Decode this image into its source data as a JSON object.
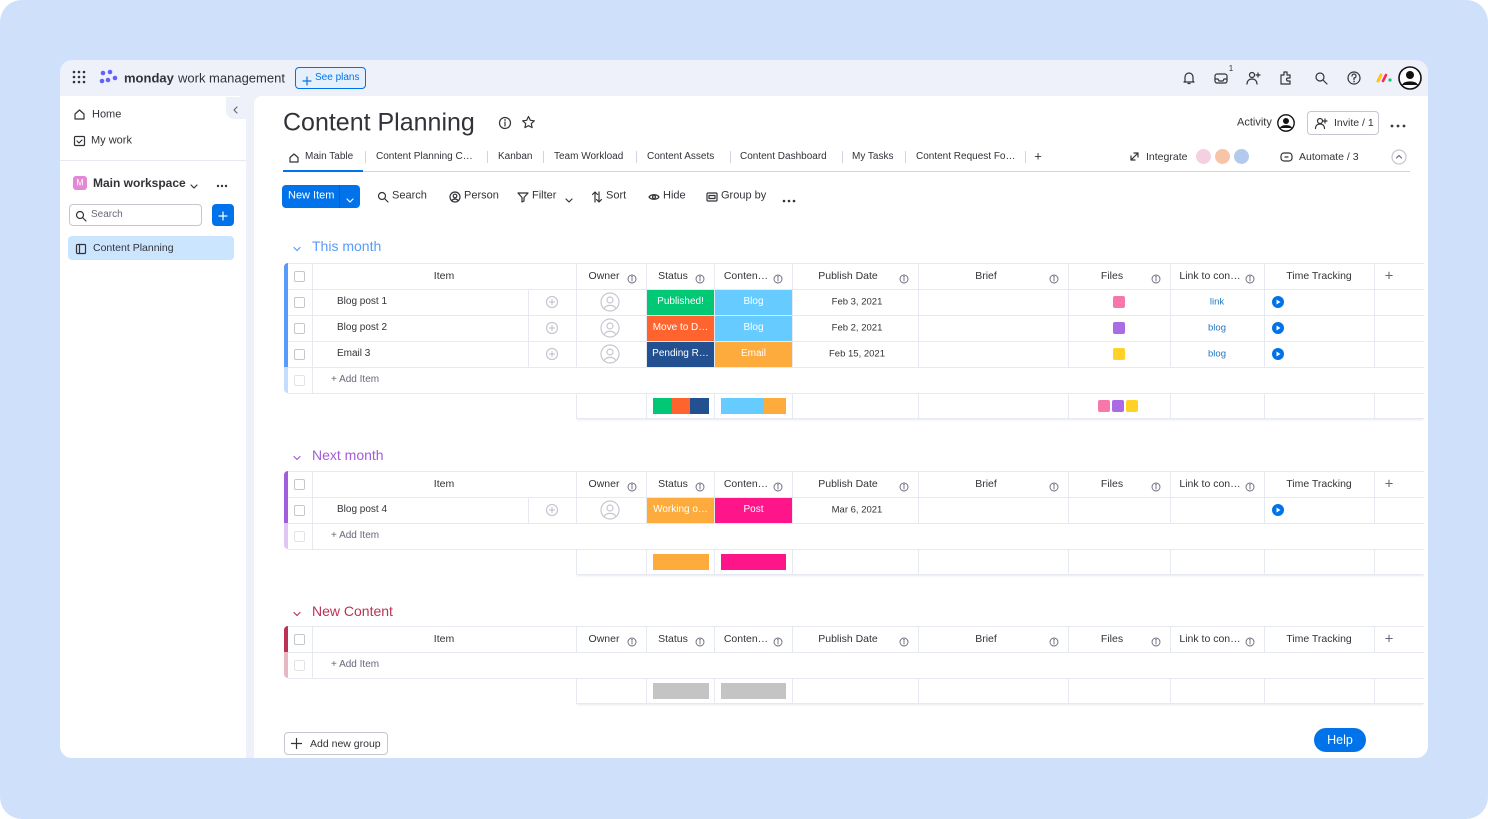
{
  "app": {
    "brand": "monday",
    "product": "work management",
    "see_plans": "See plans",
    "notification_count": 1,
    "help": "Help"
  },
  "sidebar": {
    "home": "Home",
    "my_work": "My work",
    "workspace": "Main workspace",
    "workspace_initial": "M",
    "search_placeholder": "Search",
    "boards": [
      "Content Planning"
    ]
  },
  "board": {
    "title": "Content Planning",
    "activity": "Activity",
    "invite": "Invite / 1",
    "tabs": [
      "Main Table",
      "Content Planning C…",
      "Kanban",
      "Team Workload",
      "Content Assets",
      "Content Dashboard",
      "My Tasks",
      "Content Request Fo…"
    ],
    "add_tab": "+",
    "integrate": "Integrate",
    "automate": "Automate / 3"
  },
  "toolbar": {
    "new_item": "New Item",
    "actions": [
      "Search",
      "Person",
      "Filter",
      "Sort",
      "Hide",
      "Group by"
    ]
  },
  "columns": [
    "Item",
    "Owner",
    "Status",
    "Conten…",
    "Publish Date",
    "Brief",
    "Files",
    "Link to con…",
    "Time Tracking"
  ],
  "add_column": "+",
  "groups": [
    {
      "name": "This month",
      "color": "#579bfc",
      "rows": [
        {
          "item": "Blog post 1",
          "status": "Published!",
          "status_color": "#00c875",
          "content": "Blog",
          "content_color": "#66ccff",
          "date": "Feb 3, 2021",
          "link": "link",
          "file_color": "#f65f9c"
        },
        {
          "item": "Blog post 2",
          "status": "Move to D…",
          "status_color": "#ff642e",
          "content": "Blog",
          "content_color": "#66ccff",
          "date": "Feb 2, 2021",
          "link": "blog",
          "file_color": "#9b51e0"
        },
        {
          "item": "Email 3",
          "status": "Pending R…",
          "status_color": "#225091",
          "content": "Email",
          "content_color": "#fdab3d",
          "date": "Feb 15, 2021",
          "link": "blog",
          "file_color": "#ffcb00"
        }
      ]
    },
    {
      "name": "Next month",
      "color": "#a25ddc",
      "rows": [
        {
          "item": "Blog post 4",
          "status": "Working o…",
          "status_color": "#fdab3d",
          "content": "Post",
          "content_color": "#ff158a",
          "date": "Mar 6, 2021"
        }
      ]
    },
    {
      "name": "New Content",
      "color": "#bb3354",
      "rows": []
    }
  ],
  "add_item": "+ Add Item",
  "add_group": "Add new group"
}
